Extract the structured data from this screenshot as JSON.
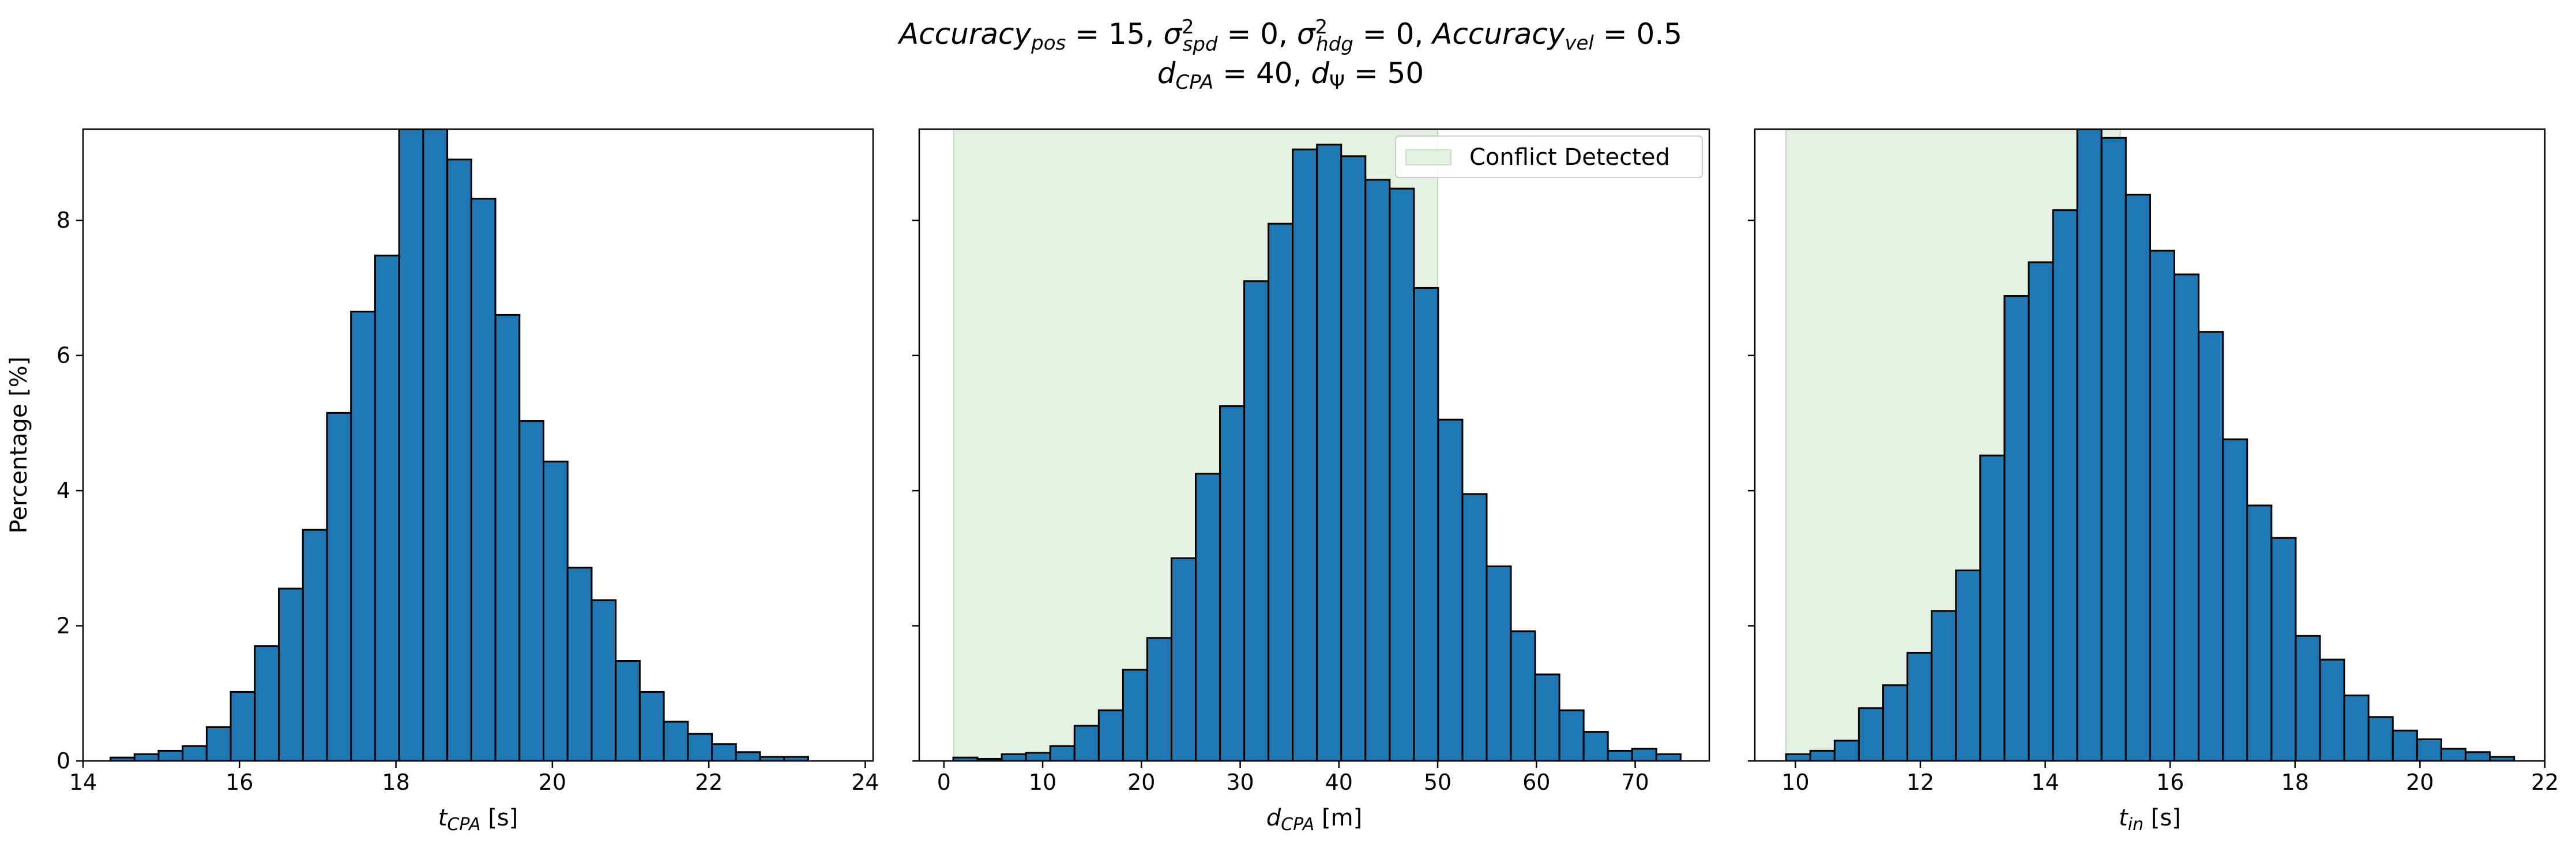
{
  "title": {
    "line1": {
      "acc_pos_name": "Accuracy",
      "acc_pos_sub": "pos",
      "acc_pos_val": " = 15, ",
      "spd_sym": "σ",
      "spd_sup": "2",
      "spd_sub": "spd",
      "spd_val": " = 0, ",
      "hdg_sym": "σ",
      "hdg_sup": "2",
      "hdg_sub": "hdg",
      "hdg_val": " = 0, ",
      "acc_vel_name": "Accuracy",
      "acc_vel_sub": "vel",
      "acc_vel_val": " = 0.5"
    },
    "line2": {
      "dcpa_sym": "d",
      "dcpa_sub": "CPA",
      "dcpa_val": " = 40, ",
      "dpsi_sym": "d",
      "dpsi_sub": "Ψ",
      "dpsi_val": " = 50"
    }
  },
  "legend": {
    "label": "Conflict Detected"
  },
  "colors": {
    "bar": "#1f77b4",
    "edge": "#000000",
    "shade": "#e5f1e3",
    "shade_edge": "#b9dcb9"
  },
  "chart_data": [
    {
      "type": "bar",
      "xlabel": {
        "sym": "t",
        "sub": "CPA",
        "unit": " [s]"
      },
      "ylabel": "Percentage [%]",
      "xlim": [
        14.0,
        24.1
      ],
      "ylim": [
        0,
        9.35
      ],
      "xticks": [
        14,
        16,
        18,
        20,
        22,
        24
      ],
      "yticks": [
        0,
        2,
        4,
        6,
        8
      ],
      "bins": {
        "start": 14.35,
        "width": 0.3076
      },
      "values": [
        0.05,
        0.1,
        0.15,
        0.22,
        0.5,
        1.02,
        1.7,
        2.55,
        3.42,
        5.15,
        6.65,
        7.48,
        9.35,
        9.35,
        8.9,
        8.32,
        6.6,
        5.03,
        4.43,
        2.86,
        2.38,
        1.48,
        1.02,
        0.58,
        0.4,
        0.25,
        0.13,
        0.06,
        0.06,
        0.0
      ]
    },
    {
      "type": "bar",
      "xlabel": {
        "sym": "d",
        "sub": "CPA",
        "unit": " [m]"
      },
      "xlim": [
        -2.5,
        77.5
      ],
      "ylim": [
        0,
        9.35
      ],
      "xticks": [
        0,
        10,
        20,
        30,
        40,
        50,
        60,
        70
      ],
      "yticks": [
        0,
        2,
        4,
        6,
        8
      ],
      "shade": [
        1.0,
        50.0
      ],
      "bins": {
        "start": 0.95,
        "width": 2.455
      },
      "values": [
        0.05,
        0.03,
        0.1,
        0.12,
        0.22,
        0.52,
        0.75,
        1.35,
        1.82,
        3.0,
        4.25,
        5.25,
        7.1,
        7.95,
        9.05,
        9.12,
        8.95,
        8.6,
        8.47,
        7.0,
        5.05,
        3.95,
        2.88,
        1.92,
        1.28,
        0.75,
        0.43,
        0.15,
        0.18,
        0.1
      ]
    },
    {
      "type": "bar",
      "xlabel": {
        "sym": "t",
        "sub": "in",
        "unit": " [s]"
      },
      "xlim": [
        9.35,
        22.0
      ],
      "ylim": [
        0,
        9.35
      ],
      "xticks": [
        10,
        12,
        14,
        16,
        18,
        20,
        22
      ],
      "yticks": [
        0,
        2,
        4,
        6,
        8
      ],
      "shade": [
        9.85,
        15.2
      ],
      "bins": {
        "start": 9.85,
        "width": 0.3886
      },
      "values": [
        0.1,
        0.15,
        0.3,
        0.78,
        1.12,
        1.6,
        2.22,
        2.82,
        4.52,
        6.88,
        7.38,
        8.15,
        9.35,
        9.22,
        8.38,
        7.55,
        7.2,
        6.35,
        4.76,
        3.78,
        3.3,
        1.85,
        1.5,
        0.97,
        0.65,
        0.45,
        0.32,
        0.18,
        0.13,
        0.06
      ]
    }
  ]
}
